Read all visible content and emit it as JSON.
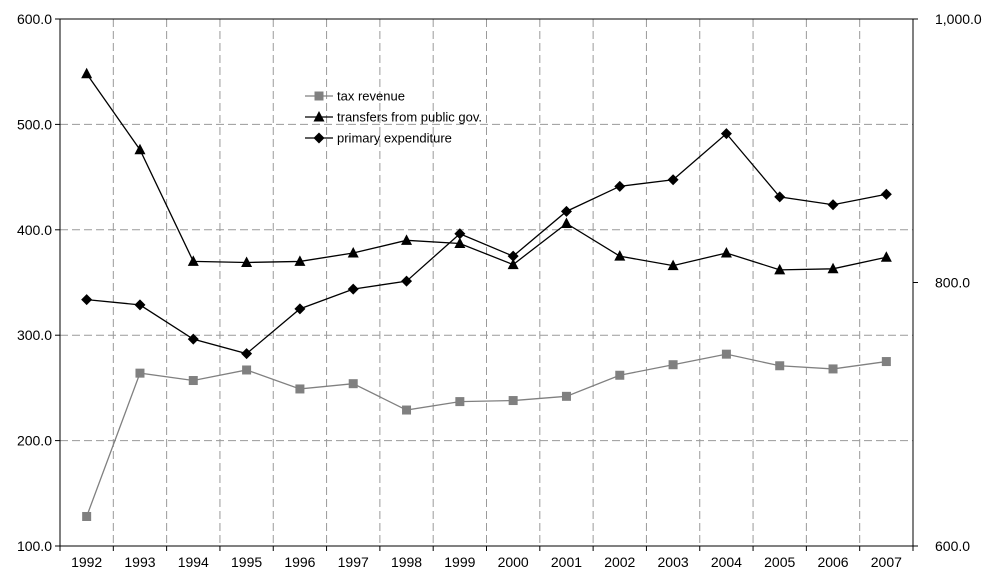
{
  "chart_data": {
    "type": "line",
    "title": "",
    "xlabel": "",
    "ylabel": "",
    "ylabel_right": "",
    "categories": [
      "1992",
      "1993",
      "1994",
      "1995",
      "1996",
      "1997",
      "1998",
      "1999",
      "2000",
      "2001",
      "2002",
      "2003",
      "2004",
      "2005",
      "2006",
      "2007"
    ],
    "ylim": [
      100,
      600
    ],
    "y_ticks": [
      "100.0",
      "200.0",
      "300.0",
      "400.0",
      "500.0",
      "600.0"
    ],
    "y2lim": [
      600,
      1000
    ],
    "y2_ticks": [
      "600.0",
      "800.0",
      "1,000.0"
    ],
    "grid": true,
    "legend_position": "top-center",
    "series": [
      {
        "name": "tax revenue",
        "axis": "left",
        "marker": "square",
        "color": "#808080",
        "values": [
          128,
          264,
          257,
          267,
          249,
          254,
          229,
          237,
          238,
          242,
          262,
          272,
          282,
          271,
          268,
          275
        ]
      },
      {
        "name": "transfers from public gov.",
        "axis": "left",
        "marker": "triangle",
        "color": "#000000",
        "values": [
          548,
          476,
          370,
          369,
          370,
          378,
          390,
          387,
          367,
          406,
          375,
          366,
          378,
          362,
          363,
          374
        ]
      },
      {
        "name": "primary expenditure",
        "axis": "right",
        "marker": "diamond",
        "color": "#000000",
        "values": [
          787,
          783,
          757,
          746,
          780,
          795,
          801,
          837,
          820,
          854,
          873,
          878,
          913,
          865,
          859,
          867
        ]
      }
    ]
  }
}
